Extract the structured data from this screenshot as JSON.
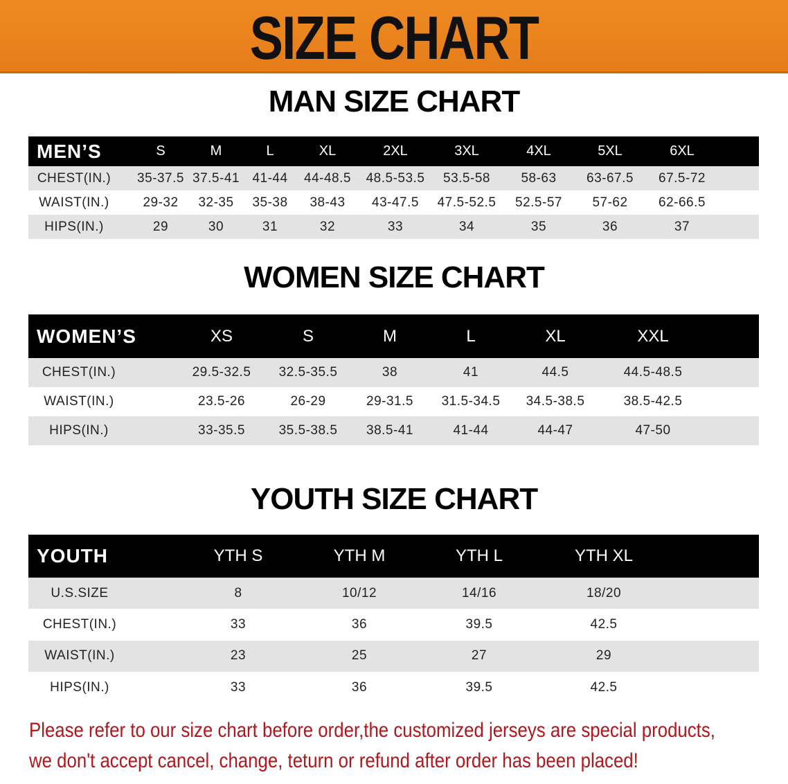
{
  "banner": {
    "title": "SIZE CHART",
    "color": "#e98320"
  },
  "men": {
    "title": "MAN SIZE CHART",
    "header_label": "MEN’S",
    "sizes": [
      "S",
      "M",
      "L",
      "XL",
      "2XL",
      "3XL",
      "4XL",
      "5XL",
      "6XL"
    ],
    "rows": [
      {
        "label": "CHEST(IN.)",
        "values": [
          "35-37.5",
          "37.5-41",
          "41-44",
          "44-48.5",
          "48.5-53.5",
          "53.5-58",
          "58-63",
          "63-67.5",
          "67.5-72"
        ]
      },
      {
        "label": "WAIST(IN.)",
        "values": [
          "29-32",
          "32-35",
          "35-38",
          "38-43",
          "43-47.5",
          "47.5-52.5",
          "52.5-57",
          "57-62",
          "62-66.5"
        ]
      },
      {
        "label": "HIPS(IN.)",
        "values": [
          "29",
          "30",
          "31",
          "32",
          "33",
          "34",
          "35",
          "36",
          "37"
        ]
      }
    ]
  },
  "women": {
    "title": "WOMEN SIZE CHART",
    "header_label": "WOMEN’S",
    "sizes": [
      "XS",
      "S",
      "M",
      "L",
      "XL",
      "XXL"
    ],
    "rows": [
      {
        "label": "CHEST(IN.)",
        "values": [
          "29.5-32.5",
          "32.5-35.5",
          "38",
          "41",
          "44.5",
          "44.5-48.5"
        ]
      },
      {
        "label": "WAIST(IN.)",
        "values": [
          "23.5-26",
          "26-29",
          "29-31.5",
          "31.5-34.5",
          "34.5-38.5",
          "38.5-42.5"
        ]
      },
      {
        "label": "HIPS(IN.)",
        "values": [
          "33-35.5",
          "35.5-38.5",
          "38.5-41",
          "41-44",
          "44-47",
          "47-50"
        ]
      }
    ]
  },
  "youth": {
    "title": "YOUTH SIZE CHART",
    "header_label": "YOUTH",
    "sizes": [
      "YTH S",
      "YTH M",
      "YTH L",
      "YTH XL"
    ],
    "rows": [
      {
        "label": "U.S.SIZE",
        "values": [
          "8",
          "10/12",
          "14/16",
          "18/20"
        ]
      },
      {
        "label": "CHEST(IN.)",
        "values": [
          "33",
          "36",
          "39.5",
          "42.5"
        ]
      },
      {
        "label": "WAIST(IN.)",
        "values": [
          "23",
          "25",
          "27",
          "29"
        ]
      },
      {
        "label": "HIPS(IN.)",
        "values": [
          "33",
          "36",
          "39.5",
          "42.5"
        ]
      }
    ]
  },
  "notice": {
    "line1": "Please refer to our size chart before order,the customized jerseys are special products,",
    "line2": "we don't accept cancel, change, teturn or refund after order has been placed!",
    "color": "#b3161b"
  }
}
